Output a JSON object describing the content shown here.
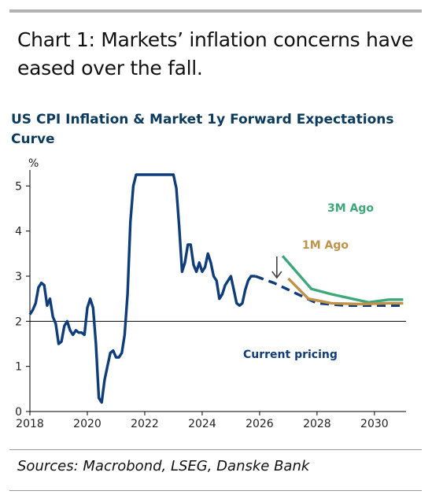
{
  "heading": "Chart 1: Markets’ inflation concerns have eased over the fall.",
  "sources": "Sources: Macrobond, LSEG, Danske Bank",
  "colors": {
    "cpi": "#0f3d7a",
    "current": "#0f3d7a",
    "three_month": "#3ea87a",
    "one_month": "#c0924a",
    "reference": "#000000",
    "rule": "#9a9a9a"
  },
  "chart_data": {
    "type": "line",
    "title": "US CPI Inflation & Market 1y Forward Expectations Curve",
    "ylabel": "%",
    "xlim": [
      2018,
      2031.1
    ],
    "ylim": [
      0,
      5.25
    ],
    "yticks": [
      0,
      1,
      2,
      3,
      4,
      5
    ],
    "xticks": [
      2018,
      2020,
      2022,
      2024,
      2026,
      2028,
      2030
    ],
    "reference_line": 2,
    "grid": false,
    "annotations": [
      "3M Ago",
      "1M Ago",
      "Current pricing"
    ],
    "arrow": "downward arrow from 3M Ago to Current pricing",
    "series": [
      {
        "name": "US CPI",
        "style": "solid",
        "x": [
          2018.0,
          2018.1,
          2018.2,
          2018.3,
          2018.4,
          2018.5,
          2018.6,
          2018.7,
          2018.8,
          2018.9,
          2019.0,
          2019.1,
          2019.2,
          2019.3,
          2019.4,
          2019.5,
          2019.6,
          2019.7,
          2019.8,
          2019.9,
          2020.0,
          2020.1,
          2020.2,
          2020.3,
          2020.4,
          2020.5,
          2020.6,
          2020.7,
          2020.8,
          2020.9,
          2021.0,
          2021.1,
          2021.2,
          2021.3,
          2021.4,
          2021.5,
          2021.6,
          2021.7,
          2021.9,
          2022.1,
          2022.4,
          2022.7,
          2023.0,
          2023.1,
          2023.2,
          2023.3,
          2023.4,
          2023.5,
          2023.6,
          2023.7,
          2023.8,
          2023.9,
          2024.0,
          2024.1,
          2024.2,
          2024.3,
          2024.4,
          2024.5,
          2024.6,
          2024.7,
          2024.8,
          2024.9,
          2025.0,
          2025.1,
          2025.2,
          2025.3,
          2025.4,
          2025.5,
          2025.6,
          2025.7,
          2025.85
        ],
        "values": [
          2.15,
          2.25,
          2.4,
          2.75,
          2.85,
          2.8,
          2.35,
          2.5,
          2.1,
          1.95,
          1.5,
          1.55,
          1.9,
          2.0,
          1.8,
          1.7,
          1.8,
          1.75,
          1.75,
          1.7,
          2.3,
          2.5,
          2.3,
          1.5,
          0.3,
          0.2,
          0.7,
          1.0,
          1.3,
          1.35,
          1.2,
          1.2,
          1.3,
          1.7,
          2.6,
          4.2,
          5.0,
          5.25,
          5.25,
          5.25,
          5.25,
          5.25,
          5.25,
          4.95,
          4.1,
          3.1,
          3.3,
          3.7,
          3.7,
          3.25,
          3.1,
          3.3,
          3.1,
          3.2,
          3.5,
          3.3,
          3.0,
          2.9,
          2.5,
          2.6,
          2.8,
          2.9,
          3.0,
          2.7,
          2.4,
          2.35,
          2.4,
          2.7,
          2.9,
          3.0,
          3.0
        ]
      },
      {
        "name": "Current pricing",
        "style": "dashed",
        "x": [
          2025.85,
          2026.5,
          2027.0,
          2027.5,
          2028.0,
          2029.0,
          2030.0,
          2031.0
        ],
        "values": [
          3.0,
          2.85,
          2.7,
          2.55,
          2.4,
          2.35,
          2.35,
          2.35
        ]
      },
      {
        "name": "3M Ago",
        "style": "solid",
        "x": [
          2026.8,
          2027.8,
          2028.5,
          2029.8,
          2030.5,
          2031.0
        ],
        "values": [
          3.45,
          2.72,
          2.6,
          2.42,
          2.48,
          2.48
        ]
      },
      {
        "name": "1M Ago",
        "style": "solid",
        "x": [
          2027.0,
          2027.7,
          2028.5,
          2029.5,
          2030.5,
          2031.0
        ],
        "values": [
          2.95,
          2.5,
          2.4,
          2.38,
          2.4,
          2.4
        ]
      }
    ]
  }
}
